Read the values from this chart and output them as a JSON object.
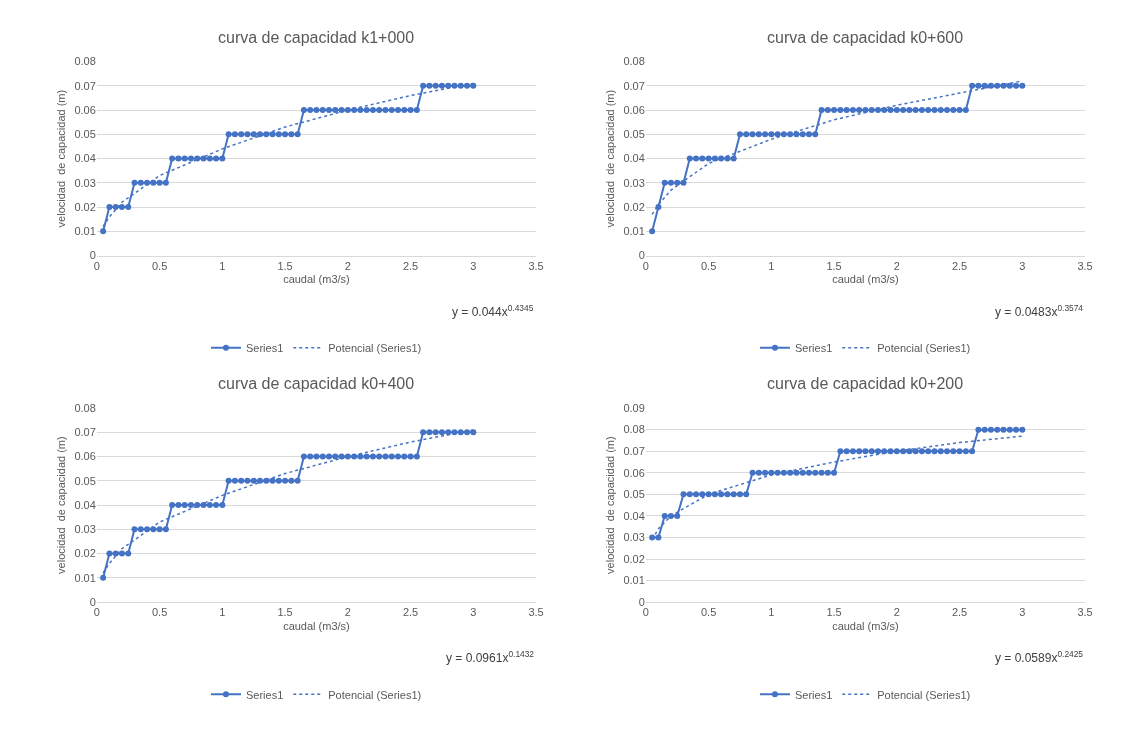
{
  "chart_data": [
    {
      "type": "line",
      "title": "curva de capacidad k1+000",
      "xlabel": "caudal (m3/s)",
      "ylabel": "velocidad  de capacidad (m)",
      "xlim": [
        0,
        3.5
      ],
      "xticks": [
        0,
        0.5,
        1,
        1.5,
        2,
        2.5,
        3,
        3.5
      ],
      "ylim": [
        0,
        0.08
      ],
      "yticks": [
        0,
        0.01,
        0.02,
        0.03,
        0.04,
        0.05,
        0.06,
        0.07,
        0.08
      ],
      "grid": "y",
      "legend": "bottom",
      "annotations": [
        "y = 0.044x$^{0.4345}$"
      ],
      "series": [
        {
          "name": "Series1",
          "color": "#4472c4",
          "marker": "circle",
          "line_style": "solid",
          "x": [
            0.05,
            0.1,
            0.15,
            0.2,
            0.25,
            0.3,
            0.35,
            0.4,
            0.45,
            0.5,
            0.55,
            0.6,
            0.65,
            0.7,
            0.75,
            0.8,
            0.85,
            0.9,
            0.95,
            1.0,
            1.05,
            1.1,
            1.15,
            1.2,
            1.25,
            1.3,
            1.35,
            1.4,
            1.45,
            1.5,
            1.55,
            1.6,
            1.65,
            1.7,
            1.75,
            1.8,
            1.85,
            1.9,
            1.95,
            2.0,
            2.05,
            2.1,
            2.15,
            2.2,
            2.25,
            2.3,
            2.35,
            2.4,
            2.45,
            2.5,
            2.55,
            2.6,
            2.65,
            2.7,
            2.75,
            2.8,
            2.85,
            2.9,
            2.95,
            3.0
          ],
          "values": [
            0.01,
            0.02,
            0.02,
            0.02,
            0.02,
            0.03,
            0.03,
            0.03,
            0.03,
            0.03,
            0.03,
            0.04,
            0.04,
            0.04,
            0.04,
            0.04,
            0.04,
            0.04,
            0.04,
            0.04,
            0.05,
            0.05,
            0.05,
            0.05,
            0.05,
            0.05,
            0.05,
            0.05,
            0.05,
            0.05,
            0.05,
            0.05,
            0.06,
            0.06,
            0.06,
            0.06,
            0.06,
            0.06,
            0.06,
            0.06,
            0.06,
            0.06,
            0.06,
            0.06,
            0.06,
            0.06,
            0.06,
            0.06,
            0.06,
            0.06,
            0.06,
            0.07,
            0.07,
            0.07,
            0.07,
            0.07,
            0.07,
            0.07,
            0.07,
            0.07
          ]
        },
        {
          "name": "Potencial (Series1)",
          "color": "#4472c4",
          "type": "line",
          "marker": "none",
          "line_style": "dotted",
          "x": [
            0.05,
            0.1,
            0.2,
            0.5,
            1,
            1.5,
            2,
            2.5,
            3
          ],
          "values": [
            0.012,
            0.016,
            0.022,
            0.033,
            0.044,
            0.053,
            0.06,
            0.066,
            0.071
          ]
        }
      ]
    },
    {
      "type": "line",
      "title": "curva de capacidad k0+600",
      "xlabel": "caudal (m3/s)",
      "ylabel": "velocidad  de capacidad (m)",
      "xlim": [
        0,
        3.5
      ],
      "xticks": [
        0,
        0.5,
        1,
        1.5,
        2,
        2.5,
        3,
        3.5
      ],
      "ylim": [
        0,
        0.08
      ],
      "yticks": [
        0,
        0.01,
        0.02,
        0.03,
        0.04,
        0.05,
        0.06,
        0.07,
        0.08
      ],
      "grid": "y",
      "legend": "bottom",
      "annotations": [
        "y = 0.0483x$^{0.3574}$"
      ],
      "series": [
        {
          "name": "Series1",
          "color": "#4472c4",
          "marker": "circle",
          "line_style": "solid",
          "x": [
            0.05,
            0.1,
            0.15,
            0.2,
            0.25,
            0.3,
            0.35,
            0.4,
            0.45,
            0.5,
            0.55,
            0.6,
            0.65,
            0.7,
            0.75,
            0.8,
            0.85,
            0.9,
            0.95,
            1.0,
            1.05,
            1.1,
            1.15,
            1.2,
            1.25,
            1.3,
            1.35,
            1.4,
            1.45,
            1.5,
            1.55,
            1.6,
            1.65,
            1.7,
            1.75,
            1.8,
            1.85,
            1.9,
            1.95,
            2.0,
            2.05,
            2.1,
            2.15,
            2.2,
            2.25,
            2.3,
            2.35,
            2.4,
            2.45,
            2.5,
            2.55,
            2.6,
            2.65,
            2.7,
            2.75,
            2.8,
            2.85,
            2.9,
            2.95,
            3.0
          ],
          "values": [
            0.01,
            0.02,
            0.03,
            0.03,
            0.03,
            0.03,
            0.04,
            0.04,
            0.04,
            0.04,
            0.04,
            0.04,
            0.04,
            0.04,
            0.05,
            0.05,
            0.05,
            0.05,
            0.05,
            0.05,
            0.05,
            0.05,
            0.05,
            0.05,
            0.05,
            0.05,
            0.05,
            0.06,
            0.06,
            0.06,
            0.06,
            0.06,
            0.06,
            0.06,
            0.06,
            0.06,
            0.06,
            0.06,
            0.06,
            0.06,
            0.06,
            0.06,
            0.06,
            0.06,
            0.06,
            0.06,
            0.06,
            0.06,
            0.06,
            0.06,
            0.06,
            0.07,
            0.07,
            0.07,
            0.07,
            0.07,
            0.07,
            0.07,
            0.07,
            0.07
          ]
        },
        {
          "name": "Potencial (Series1)",
          "color": "#4472c4",
          "type": "line",
          "marker": "none",
          "line_style": "dotted",
          "x": [
            0.05,
            0.1,
            0.2,
            0.5,
            1,
            1.5,
            2,
            2.5,
            3
          ],
          "values": [
            0.017,
            0.021,
            0.027,
            0.038,
            0.048,
            0.056,
            0.062,
            0.067,
            0.072
          ]
        }
      ]
    },
    {
      "type": "line",
      "title": "curva de capacidad k0+400",
      "xlabel": "caudal (m3/s)",
      "ylabel": "velocidad  de capacidad (m)",
      "xlim": [
        0,
        3.5
      ],
      "xticks": [
        0,
        0.5,
        1,
        1.5,
        2,
        2.5,
        3,
        3.5
      ],
      "ylim": [
        0,
        0.08
      ],
      "yticks": [
        0,
        0.01,
        0.02,
        0.03,
        0.04,
        0.05,
        0.06,
        0.07,
        0.08
      ],
      "grid": "y",
      "legend": "bottom",
      "annotations": [
        "y = 0.0961x$^{0.1432}$"
      ],
      "series": [
        {
          "name": "Series1",
          "color": "#4472c4",
          "marker": "circle",
          "line_style": "solid",
          "x": [
            0.05,
            0.1,
            0.15,
            0.2,
            0.25,
            0.3,
            0.35,
            0.4,
            0.45,
            0.5,
            0.55,
            0.6,
            0.65,
            0.7,
            0.75,
            0.8,
            0.85,
            0.9,
            0.95,
            1.0,
            1.05,
            1.1,
            1.15,
            1.2,
            1.25,
            1.3,
            1.35,
            1.4,
            1.45,
            1.5,
            1.55,
            1.6,
            1.65,
            1.7,
            1.75,
            1.8,
            1.85,
            1.9,
            1.95,
            2.0,
            2.05,
            2.1,
            2.15,
            2.2,
            2.25,
            2.3,
            2.35,
            2.4,
            2.45,
            2.5,
            2.55,
            2.6,
            2.65,
            2.7,
            2.75,
            2.8,
            2.85,
            2.9,
            2.95,
            3.0
          ],
          "values": [
            0.01,
            0.02,
            0.02,
            0.02,
            0.02,
            0.03,
            0.03,
            0.03,
            0.03,
            0.03,
            0.03,
            0.04,
            0.04,
            0.04,
            0.04,
            0.04,
            0.04,
            0.04,
            0.04,
            0.04,
            0.05,
            0.05,
            0.05,
            0.05,
            0.05,
            0.05,
            0.05,
            0.05,
            0.05,
            0.05,
            0.05,
            0.05,
            0.06,
            0.06,
            0.06,
            0.06,
            0.06,
            0.06,
            0.06,
            0.06,
            0.06,
            0.06,
            0.06,
            0.06,
            0.06,
            0.06,
            0.06,
            0.06,
            0.06,
            0.06,
            0.06,
            0.07,
            0.07,
            0.07,
            0.07,
            0.07,
            0.07,
            0.07,
            0.07,
            0.07
          ]
        },
        {
          "name": "Potencial (Series1)",
          "color": "#4472c4",
          "type": "line",
          "marker": "none",
          "line_style": "dotted",
          "x": [
            0.05,
            0.1,
            0.2,
            0.5,
            1,
            1.5,
            2,
            2.5,
            3
          ],
          "values": [
            0.012,
            0.016,
            0.022,
            0.033,
            0.044,
            0.053,
            0.06,
            0.066,
            0.071
          ]
        }
      ]
    },
    {
      "type": "line",
      "title": "curva de capacidad k0+200",
      "xlabel": "caudal (m3/s)",
      "ylabel": "velocidad  de capacidad (m)",
      "xlim": [
        0,
        3.5
      ],
      "xticks": [
        0,
        0.5,
        1,
        1.5,
        2,
        2.5,
        3,
        3.5
      ],
      "ylim": [
        0,
        0.09
      ],
      "yticks": [
        0,
        0.01,
        0.02,
        0.03,
        0.04,
        0.05,
        0.06,
        0.07,
        0.08,
        0.09
      ],
      "grid": "y",
      "legend": "bottom",
      "annotations": [
        "y = 0.0589x$^{0.2425}$"
      ],
      "series": [
        {
          "name": "Series1",
          "color": "#4472c4",
          "marker": "circle",
          "line_style": "solid",
          "x": [
            0.05,
            0.1,
            0.15,
            0.2,
            0.25,
            0.3,
            0.35,
            0.4,
            0.45,
            0.5,
            0.55,
            0.6,
            0.65,
            0.7,
            0.75,
            0.8,
            0.85,
            0.9,
            0.95,
            1.0,
            1.05,
            1.1,
            1.15,
            1.2,
            1.25,
            1.3,
            1.35,
            1.4,
            1.45,
            1.5,
            1.55,
            1.6,
            1.65,
            1.7,
            1.75,
            1.8,
            1.85,
            1.9,
            1.95,
            2.0,
            2.05,
            2.1,
            2.15,
            2.2,
            2.25,
            2.3,
            2.35,
            2.4,
            2.45,
            2.5,
            2.55,
            2.6,
            2.65,
            2.7,
            2.75,
            2.8,
            2.85,
            2.9,
            2.95,
            3.0
          ],
          "values": [
            0.03,
            0.03,
            0.04,
            0.04,
            0.04,
            0.05,
            0.05,
            0.05,
            0.05,
            0.05,
            0.05,
            0.05,
            0.05,
            0.05,
            0.05,
            0.05,
            0.06,
            0.06,
            0.06,
            0.06,
            0.06,
            0.06,
            0.06,
            0.06,
            0.06,
            0.06,
            0.06,
            0.06,
            0.06,
            0.06,
            0.07,
            0.07,
            0.07,
            0.07,
            0.07,
            0.07,
            0.07,
            0.07,
            0.07,
            0.07,
            0.07,
            0.07,
            0.07,
            0.07,
            0.07,
            0.07,
            0.07,
            0.07,
            0.07,
            0.07,
            0.07,
            0.07,
            0.08,
            0.08,
            0.08,
            0.08,
            0.08,
            0.08,
            0.08,
            0.08
          ]
        },
        {
          "name": "Potencial (Series1)",
          "color": "#4472c4",
          "type": "line",
          "marker": "none",
          "line_style": "dotted",
          "x": [
            0.05,
            0.1,
            0.2,
            0.5,
            1,
            1.5,
            2,
            2.5,
            3
          ],
          "values": [
            0.029,
            0.034,
            0.04,
            0.05,
            0.059,
            0.065,
            0.07,
            0.074,
            0.077
          ]
        }
      ]
    }
  ]
}
